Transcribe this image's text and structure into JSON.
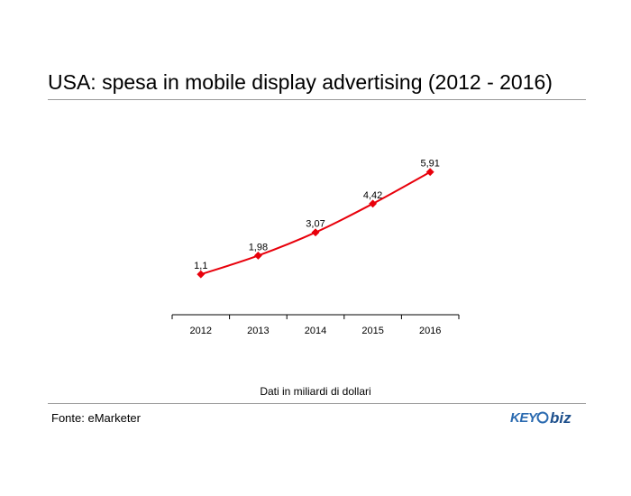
{
  "title": "USA: spesa in mobile display advertising (2012 - 2016)",
  "note": "Dati in miliardi di dollari",
  "source": "Fonte: eMarketer",
  "logo": {
    "text_left": "KEY",
    "text_right": "biz",
    "colors": {
      "key": "#2a6ab0",
      "biz": "#1d4f8c"
    }
  },
  "chart_data": {
    "type": "line",
    "categories": [
      "2012",
      "2013",
      "2014",
      "2015",
      "2016"
    ],
    "series": [
      {
        "values": [
          1.1,
          1.98,
          3.07,
          4.42,
          5.91
        ],
        "labels": [
          "1,1",
          "1,98",
          "3,07",
          "4,42",
          "5,91"
        ],
        "color": "#e8000b"
      }
    ],
    "xlabel": "",
    "ylabel": "",
    "ylim": [
      -0.8,
      7.0
    ],
    "grid": false,
    "legend": "none"
  }
}
